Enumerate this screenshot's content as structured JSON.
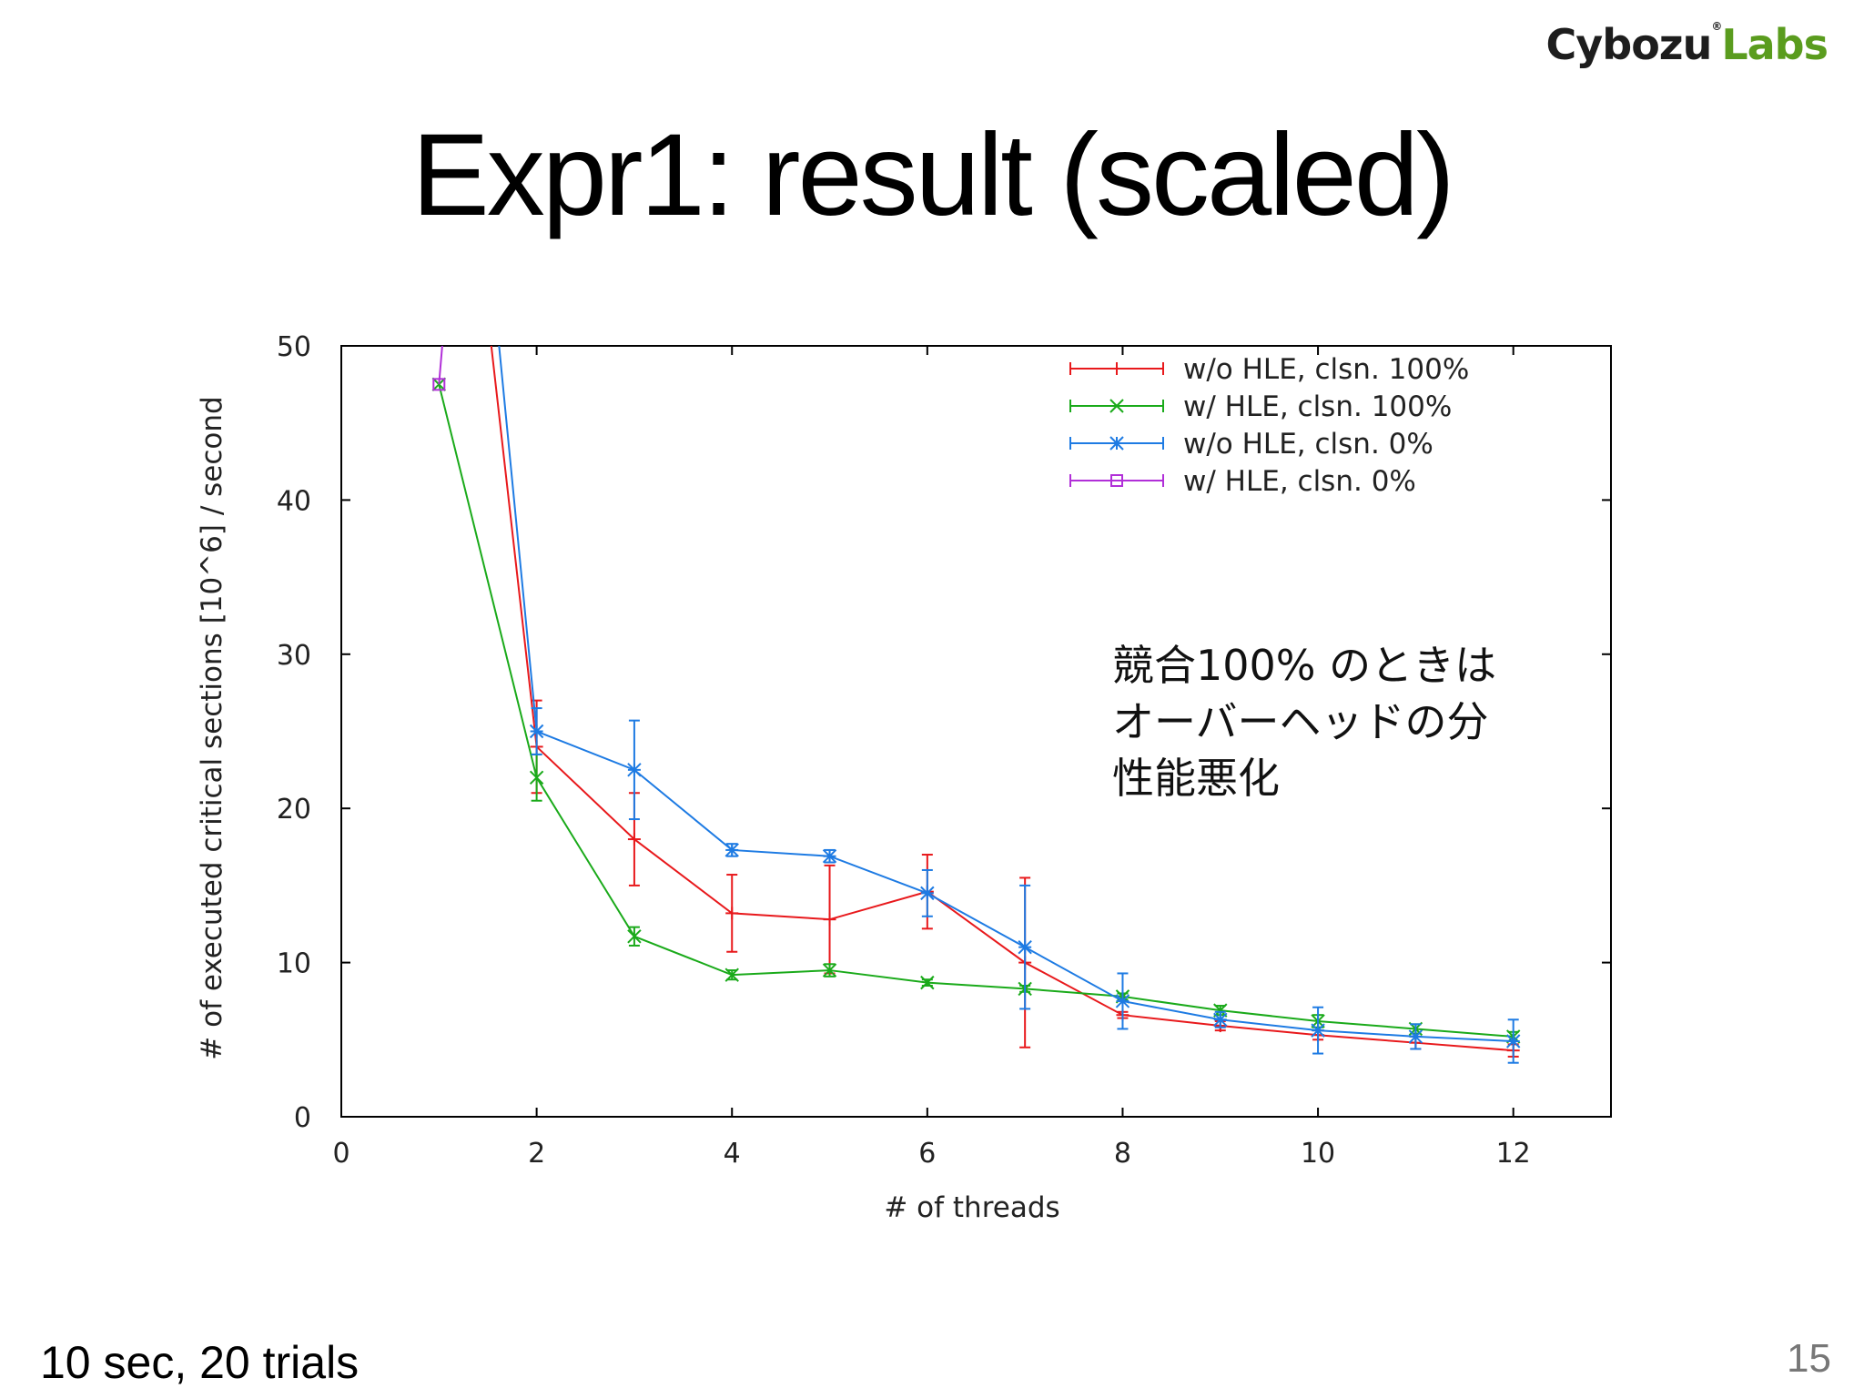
{
  "logo": {
    "part1": "Cybozu",
    "part2": "Labs"
  },
  "title": "Expr1: result (scaled)",
  "annotation": [
    "競合100% のときは",
    "オーバーヘッドの分",
    "性能悪化"
  ],
  "footer_note": "10 sec, 20 trials",
  "page_number": "15",
  "chart_data": {
    "type": "line",
    "title": "",
    "xlabel": "# of threads",
    "ylabel": "# of executed critical sections [10^6] / second",
    "xlim": [
      0,
      13
    ],
    "ylim": [
      0,
      50
    ],
    "xticks": [
      0,
      2,
      4,
      6,
      8,
      10,
      12
    ],
    "yticks": [
      0,
      10,
      20,
      30,
      40,
      50
    ],
    "grid": false,
    "legend_position": "top-right",
    "series": [
      {
        "name": "w/o HLE, clsn. 100%",
        "color": "#e8191c",
        "marker": "plus",
        "x": [
          1,
          2,
          3,
          4,
          5,
          6,
          7,
          8,
          9,
          10,
          11,
          12
        ],
        "y": [
          80,
          24,
          18,
          13.2,
          12.8,
          14.6,
          10,
          6.6,
          5.9,
          5.3,
          4.8,
          4.3
        ],
        "err": [
          0,
          3,
          3,
          2.5,
          3.5,
          2.4,
          5.5,
          0.2,
          0.3,
          0.3,
          0.4,
          0.4
        ]
      },
      {
        "name": "w/ HLE, clsn. 100%",
        "color": "#1aaa1a",
        "marker": "cross",
        "x": [
          1,
          2,
          3,
          4,
          5,
          6,
          7,
          8,
          9,
          10,
          11,
          12
        ],
        "y": [
          47.5,
          22,
          11.7,
          9.2,
          9.5,
          8.7,
          8.3,
          7.8,
          6.9,
          6.2,
          5.7,
          5.2
        ],
        "err": [
          0,
          1.5,
          0.6,
          0.3,
          0.4,
          0.2,
          0.2,
          0.2,
          0.3,
          0.4,
          0.3,
          0.3
        ]
      },
      {
        "name": "w/o HLE, clsn. 0%",
        "color": "#1e7be3",
        "marker": "star",
        "x": [
          1,
          2,
          3,
          4,
          5,
          6,
          7,
          8,
          9,
          10,
          11,
          12
        ],
        "y": [
          90,
          25,
          22.5,
          17.3,
          16.9,
          14.5,
          11,
          7.5,
          6.3,
          5.6,
          5.2,
          4.9
        ],
        "err": [
          0,
          1.5,
          3.2,
          0.4,
          0.4,
          1.5,
          4,
          1.8,
          0.5,
          1.5,
          0.8,
          1.4
        ]
      },
      {
        "name": "w/ HLE, clsn. 0%",
        "color": "#b12fd8",
        "marker": "square",
        "x": [
          1,
          1.1
        ],
        "y": [
          47.5,
          55
        ],
        "err": [
          0,
          0
        ]
      }
    ]
  }
}
